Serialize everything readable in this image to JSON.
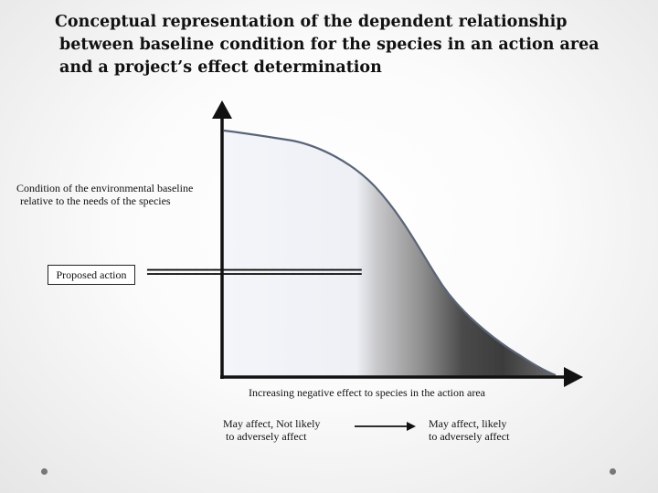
{
  "title": {
    "line1": "Conceptual representation of the dependent relationship",
    "line2": "between baseline condition for the species in an action area",
    "line3": "and a project’s effect determination"
  },
  "y_axis_label": {
    "line1": "Condition of the environmental baseline",
    "line2": "relative to the needs of the species"
  },
  "proposed_action": {
    "label": "Proposed action",
    "threshold_marker": "======================"
  },
  "x_axis_label": "Increasing negative effect to species in the action area",
  "categories": {
    "left": {
      "line1": "May affect,  Not likely",
      "line2": "to adversely affect"
    },
    "right": {
      "line1": "May affect, likely",
      "line2": "to adversely affect"
    }
  },
  "colors": {
    "axis": "#111111",
    "curve": "#5a6478",
    "fill_light": "#f2f4f9",
    "fill_dark": "#3a3a3a"
  }
}
